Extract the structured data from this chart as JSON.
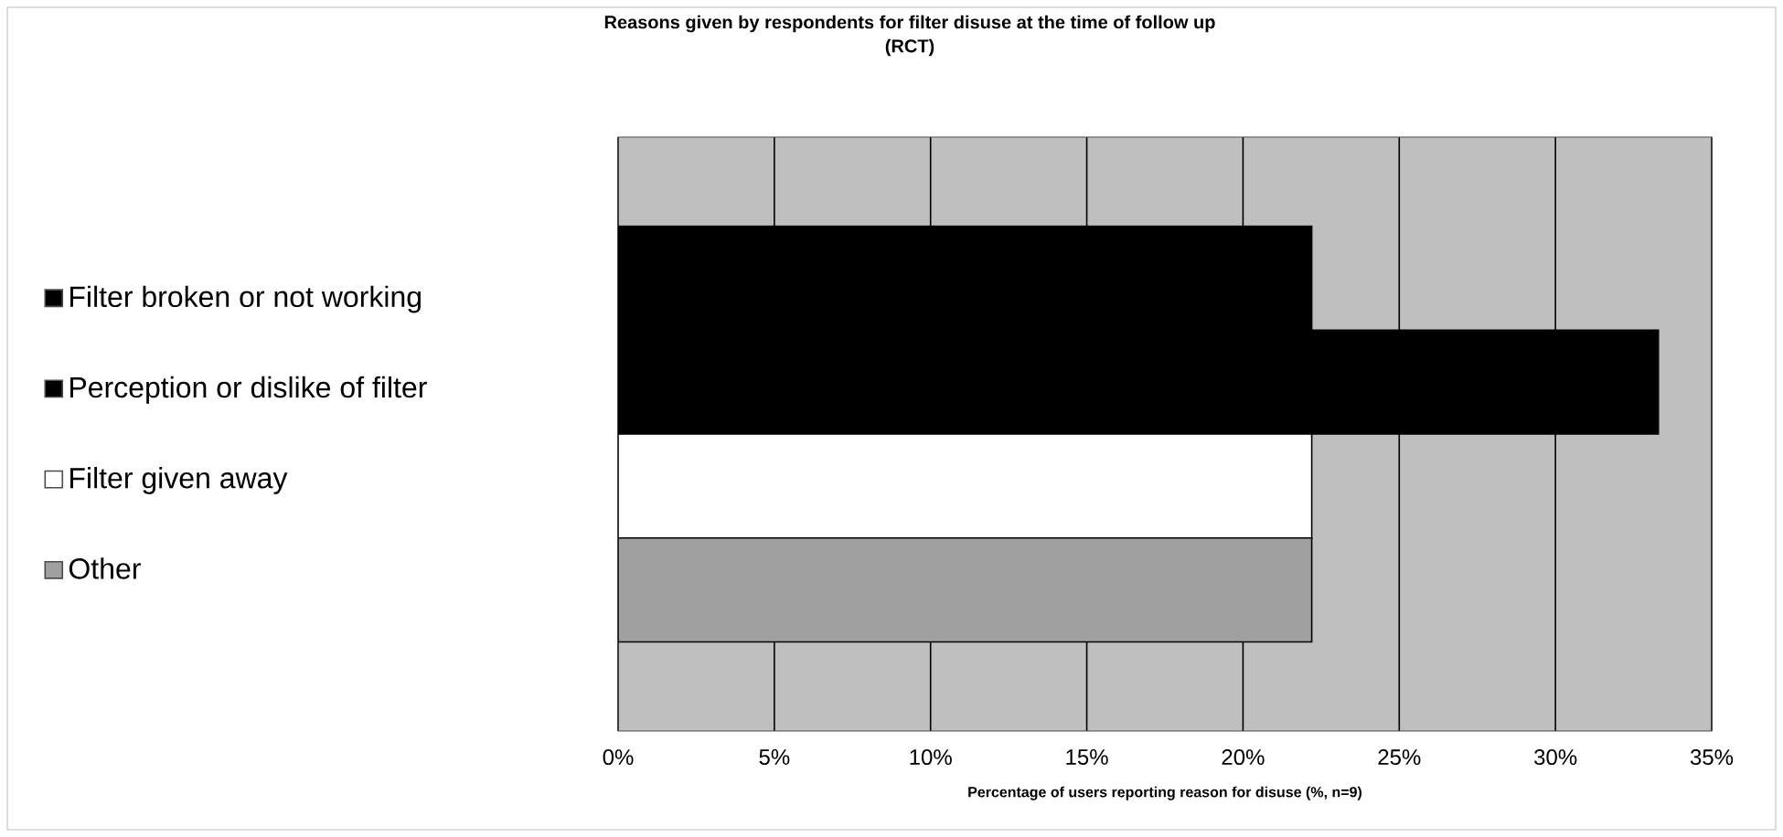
{
  "chart_data": {
    "type": "bar",
    "orientation": "horizontal",
    "title": "Reasons given by respondents for filter disuse at the time of follow up",
    "subtitle": "(RCT)",
    "xlabel": "Percentage of users reporting reason for disuse (%, n=9)",
    "categories": [
      null
    ],
    "series": [
      {
        "name": "Filter broken or not working",
        "color": "#000000",
        "values": [
          22.2
        ]
      },
      {
        "name": "Perception or dislike of filter",
        "color": "#000000",
        "values": [
          33.3
        ]
      },
      {
        "name": "Filter given away",
        "color": "#ffffff",
        "values": [
          22.2
        ]
      },
      {
        "name": "Other",
        "color": "#a0a0a0",
        "values": [
          22.2
        ]
      }
    ],
    "xlim": [
      0,
      35
    ],
    "xticks": [
      {
        "value": 0,
        "label": "0%"
      },
      {
        "value": 5,
        "label": "5%"
      },
      {
        "value": 10,
        "label": "10%"
      },
      {
        "value": 15,
        "label": "15%"
      },
      {
        "value": 20,
        "label": "20%"
      },
      {
        "value": 25,
        "label": "25%"
      },
      {
        "value": 30,
        "label": "30%"
      },
      {
        "value": 35,
        "label": "35%"
      }
    ],
    "grid": "x",
    "legend": "left"
  }
}
